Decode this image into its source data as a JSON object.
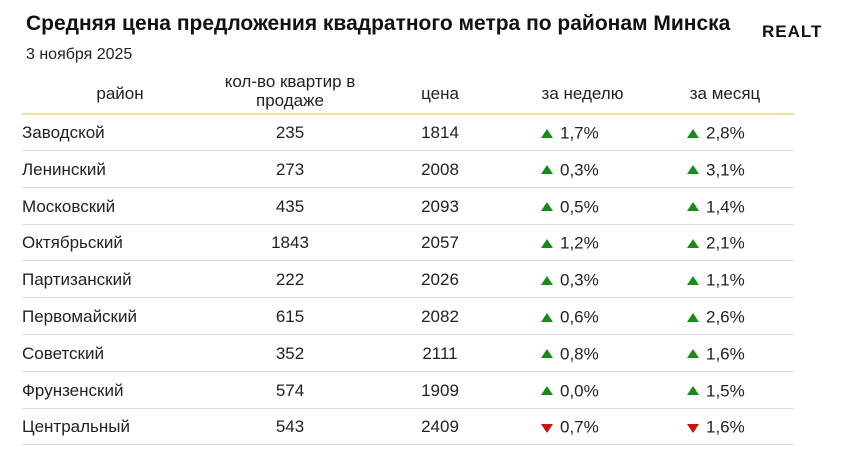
{
  "title": "Средняя цена предложения квадратного метра по районам Минска",
  "subtitle": "3 ноября 2025",
  "logo": "REALT",
  "colors": {
    "up": "#1a8a1a",
    "down": "#cc1111",
    "header_line": "#f0e38a"
  },
  "chart_data": {
    "type": "table",
    "columns": [
      "район",
      "кол-во квартир в продаже",
      "цена",
      "за неделю",
      "за месяц"
    ],
    "rows": [
      {
        "district": "Заводской",
        "count": "235",
        "price": "1814",
        "week": "1,7%",
        "week_dir": "up",
        "month": "2,8%",
        "month_dir": "up"
      },
      {
        "district": "Ленинский",
        "count": "273",
        "price": "2008",
        "week": "0,3%",
        "week_dir": "up",
        "month": "3,1%",
        "month_dir": "up"
      },
      {
        "district": "Московский",
        "count": "435",
        "price": "2093",
        "week": "0,5%",
        "week_dir": "up",
        "month": "1,4%",
        "month_dir": "up"
      },
      {
        "district": "Октябрьский",
        "count": "1843",
        "price": "2057",
        "week": "1,2%",
        "week_dir": "up",
        "month": "2,1%",
        "month_dir": "up"
      },
      {
        "district": "Партизанский",
        "count": "222",
        "price": "2026",
        "week": "0,3%",
        "week_dir": "up",
        "month": "1,1%",
        "month_dir": "up"
      },
      {
        "district": "Первомайский",
        "count": "615",
        "price": "2082",
        "week": "0,6%",
        "week_dir": "up",
        "month": "2,6%",
        "month_dir": "up"
      },
      {
        "district": "Советский",
        "count": "352",
        "price": "2111",
        "week": "0,8%",
        "week_dir": "up",
        "month": "1,6%",
        "month_dir": "up"
      },
      {
        "district": "Фрунзенский",
        "count": "574",
        "price": "1909",
        "week": "0,0%",
        "week_dir": "up",
        "month": "1,5%",
        "month_dir": "up"
      },
      {
        "district": "Центральный",
        "count": "543",
        "price": "2409",
        "week": "0,7%",
        "week_dir": "down",
        "month": "1,6%",
        "month_dir": "down"
      }
    ]
  }
}
